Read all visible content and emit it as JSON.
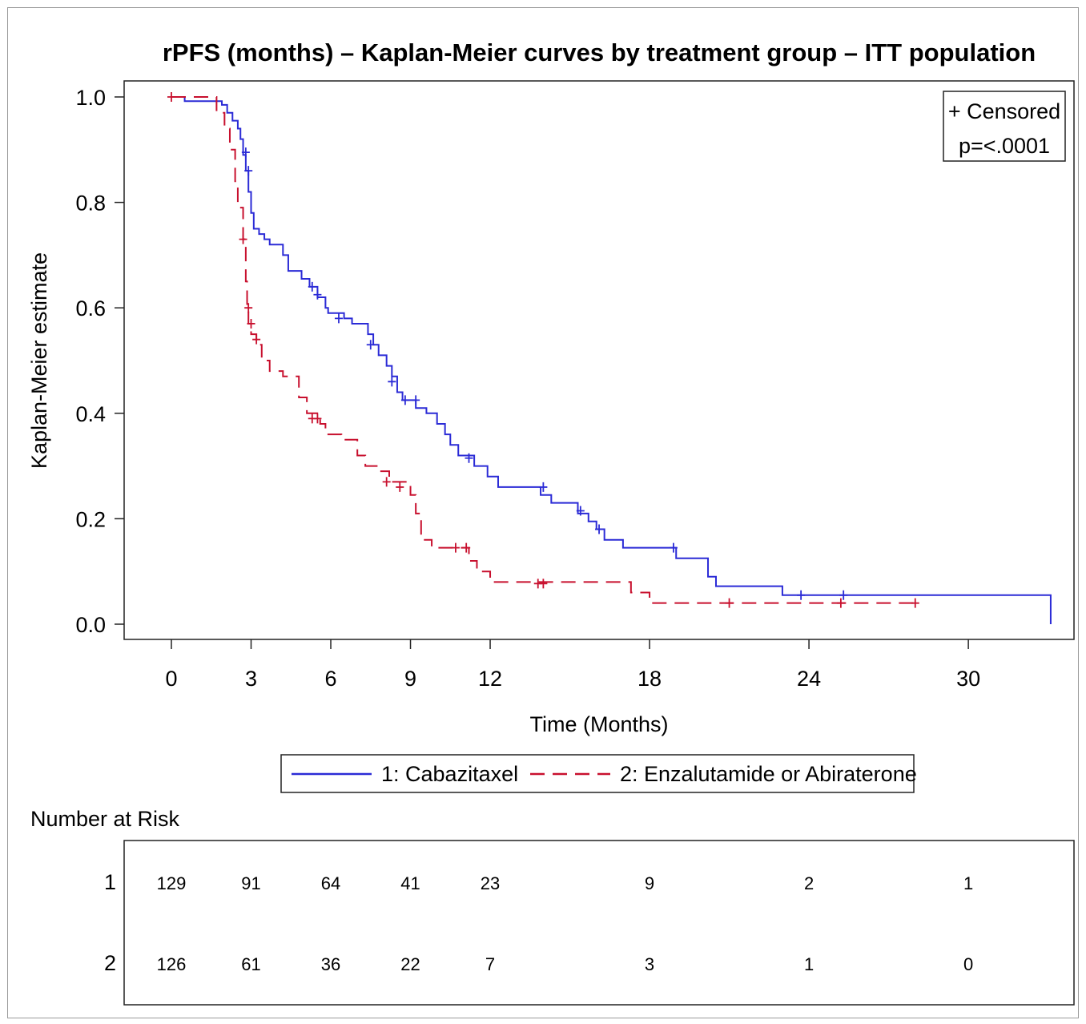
{
  "chart_data": {
    "type": "line",
    "subtype": "kaplan-meier-step",
    "title": "rPFS (months) – Kaplan-Meier curves by treatment group – ITT population",
    "xlabel": "Time (Months)",
    "ylabel": "Kaplan-Meier estimate",
    "xlim": [
      -1.5,
      34
    ],
    "ylim": [
      -0.03,
      1.03
    ],
    "x_ticks": [
      0,
      3,
      6,
      9,
      12,
      18,
      24,
      30
    ],
    "x_tick_labels": [
      "0",
      "3",
      "6",
      "9",
      "12",
      "18",
      "24",
      "30"
    ],
    "y_ticks": [
      0.0,
      0.2,
      0.4,
      0.6,
      0.8,
      1.0
    ],
    "y_tick_labels": [
      "0.0",
      "0.2",
      "0.4",
      "0.6",
      "0.8",
      "1.0"
    ],
    "inset_box": {
      "censored_label": "+ Censored",
      "p_value": "p=<.0001",
      "position": "top-right"
    },
    "legend": {
      "position": "bottom-center"
    },
    "series": [
      {
        "name": "1: Cabazitaxel",
        "color": "#2b2bd6",
        "dash": "solid",
        "steps": [
          [
            0,
            1.0
          ],
          [
            0.5,
            0.992
          ],
          [
            1.9,
            0.985
          ],
          [
            2.1,
            0.97
          ],
          [
            2.3,
            0.955
          ],
          [
            2.5,
            0.94
          ],
          [
            2.6,
            0.92
          ],
          [
            2.7,
            0.89
          ],
          [
            2.8,
            0.86
          ],
          [
            2.9,
            0.82
          ],
          [
            3.0,
            0.78
          ],
          [
            3.1,
            0.75
          ],
          [
            3.3,
            0.74
          ],
          [
            3.5,
            0.73
          ],
          [
            3.7,
            0.72
          ],
          [
            4.2,
            0.7
          ],
          [
            4.4,
            0.67
          ],
          [
            4.9,
            0.655
          ],
          [
            5.2,
            0.64
          ],
          [
            5.5,
            0.62
          ],
          [
            5.8,
            0.6
          ],
          [
            5.9,
            0.59
          ],
          [
            6.5,
            0.58
          ],
          [
            6.8,
            0.57
          ],
          [
            7.4,
            0.55
          ],
          [
            7.6,
            0.53
          ],
          [
            7.8,
            0.51
          ],
          [
            8.1,
            0.49
          ],
          [
            8.3,
            0.47
          ],
          [
            8.5,
            0.44
          ],
          [
            8.7,
            0.425
          ],
          [
            9.2,
            0.41
          ],
          [
            9.6,
            0.4
          ],
          [
            10.0,
            0.38
          ],
          [
            10.3,
            0.36
          ],
          [
            10.5,
            0.34
          ],
          [
            10.8,
            0.32
          ],
          [
            11.4,
            0.3
          ],
          [
            11.9,
            0.28
          ],
          [
            12.3,
            0.26
          ],
          [
            13.9,
            0.245
          ],
          [
            14.3,
            0.23
          ],
          [
            15.3,
            0.21
          ],
          [
            15.7,
            0.195
          ],
          [
            16.0,
            0.18
          ],
          [
            16.3,
            0.16
          ],
          [
            17.0,
            0.145
          ],
          [
            19.0,
            0.125
          ],
          [
            20.2,
            0.09
          ],
          [
            20.5,
            0.072
          ],
          [
            23.0,
            0.055
          ],
          [
            33.1,
            0.055
          ],
          [
            33.1,
            0.0
          ]
        ],
        "censored": [
          [
            2.8,
            0.895
          ],
          [
            2.9,
            0.86
          ],
          [
            5.3,
            0.64
          ],
          [
            5.5,
            0.625
          ],
          [
            6.3,
            0.58
          ],
          [
            7.5,
            0.53
          ],
          [
            8.3,
            0.46
          ],
          [
            8.8,
            0.425
          ],
          [
            9.2,
            0.425
          ],
          [
            11.2,
            0.315
          ],
          [
            14.0,
            0.26
          ],
          [
            15.4,
            0.215
          ],
          [
            16.1,
            0.18
          ],
          [
            18.9,
            0.145
          ],
          [
            23.7,
            0.055
          ],
          [
            25.3,
            0.055
          ]
        ]
      },
      {
        "name": "2: Enzalutamide or Abiraterone",
        "color": "#c8102e",
        "dash": "dashed",
        "steps": [
          [
            0,
            1.0
          ],
          [
            1.7,
            0.97
          ],
          [
            2.0,
            0.94
          ],
          [
            2.2,
            0.9
          ],
          [
            2.4,
            0.84
          ],
          [
            2.5,
            0.79
          ],
          [
            2.7,
            0.73
          ],
          [
            2.8,
            0.65
          ],
          [
            2.85,
            0.6
          ],
          [
            2.9,
            0.57
          ],
          [
            3.0,
            0.55
          ],
          [
            3.2,
            0.53
          ],
          [
            3.4,
            0.5
          ],
          [
            3.7,
            0.48
          ],
          [
            4.2,
            0.47
          ],
          [
            4.8,
            0.43
          ],
          [
            5.1,
            0.4
          ],
          [
            5.6,
            0.38
          ],
          [
            5.8,
            0.36
          ],
          [
            6.4,
            0.35
          ],
          [
            7.0,
            0.32
          ],
          [
            7.3,
            0.3
          ],
          [
            7.8,
            0.29
          ],
          [
            8.2,
            0.27
          ],
          [
            9.0,
            0.245
          ],
          [
            9.2,
            0.21
          ],
          [
            9.4,
            0.16
          ],
          [
            9.8,
            0.145
          ],
          [
            11.2,
            0.12
          ],
          [
            11.5,
            0.1
          ],
          [
            12.0,
            0.08
          ],
          [
            17.3,
            0.06
          ],
          [
            18.0,
            0.04
          ],
          [
            28.0,
            0.04
          ]
        ],
        "censored": [
          [
            0,
            1.0
          ],
          [
            2.7,
            0.73
          ],
          [
            2.9,
            0.6
          ],
          [
            3.0,
            0.57
          ],
          [
            3.2,
            0.54
          ],
          [
            5.3,
            0.39
          ],
          [
            5.5,
            0.39
          ],
          [
            8.1,
            0.27
          ],
          [
            8.6,
            0.26
          ],
          [
            10.7,
            0.145
          ],
          [
            11.1,
            0.145
          ],
          [
            13.8,
            0.077
          ],
          [
            14.0,
            0.077
          ],
          [
            21.0,
            0.04
          ],
          [
            25.2,
            0.04
          ],
          [
            28.0,
            0.04
          ]
        ]
      }
    ],
    "number_at_risk": {
      "title": "Number at Risk",
      "times": [
        0,
        3,
        6,
        9,
        12,
        18,
        24,
        30
      ],
      "rows": [
        {
          "label": "1",
          "values": [
            "129",
            "91",
            "64",
            "41",
            "23",
            "9",
            "2",
            "1"
          ]
        },
        {
          "label": "2",
          "values": [
            "126",
            "61",
            "36",
            "22",
            "7",
            "3",
            "1",
            "0"
          ]
        }
      ]
    }
  }
}
